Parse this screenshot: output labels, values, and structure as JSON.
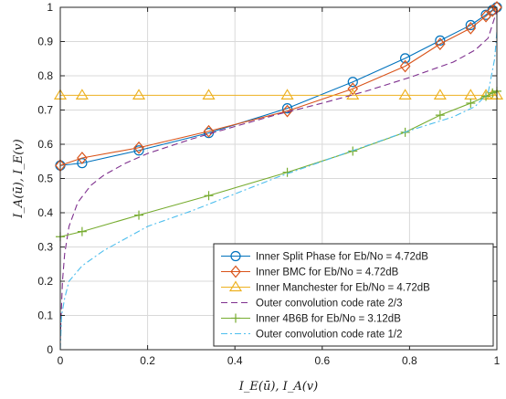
{
  "chart_data": {
    "type": "line",
    "title": "",
    "xlabel": "I_E(ū), I_A(v)",
    "ylabel": "I_A(ū), I_E(v)",
    "xlim": [
      0,
      1
    ],
    "ylim": [
      0,
      1
    ],
    "grid": true,
    "legend_position": "bottom-right",
    "x_ticks": [
      "0",
      "0.2",
      "0.4",
      "0.6",
      "0.8",
      "1"
    ],
    "y_ticks": [
      "0",
      "0.1",
      "0.2",
      "0.3",
      "0.4",
      "0.5",
      "0.6",
      "0.7",
      "0.8",
      "0.9",
      "1"
    ],
    "series": [
      {
        "name": "Inner Split Phase for Eb/No = 4.72dB",
        "color": "#0072BD",
        "marker": "circle",
        "line_style": "solid",
        "x": [
          0,
          0.05,
          0.18,
          0.34,
          0.52,
          0.67,
          0.79,
          0.87,
          0.94,
          0.975,
          0.99,
          1.0
        ],
        "y": [
          0.538,
          0.545,
          0.582,
          0.633,
          0.705,
          0.782,
          0.851,
          0.903,
          0.948,
          0.978,
          0.992,
          1.0
        ]
      },
      {
        "name": "Inner BMC for Eb/No = 4.72dB",
        "color": "#D95319",
        "marker": "diamond",
        "line_style": "solid",
        "x": [
          0,
          0.05,
          0.18,
          0.34,
          0.52,
          0.67,
          0.79,
          0.87,
          0.94,
          0.975,
          0.99,
          1.0
        ],
        "y": [
          0.538,
          0.56,
          0.59,
          0.638,
          0.697,
          0.762,
          0.828,
          0.893,
          0.939,
          0.974,
          0.99,
          1.0
        ]
      },
      {
        "name": "Inner Manchester for Eb/No = 4.72dB",
        "color": "#EDB120",
        "marker": "triangle",
        "line_style": "solid",
        "x": [
          0,
          0.05,
          0.18,
          0.34,
          0.52,
          0.67,
          0.79,
          0.87,
          0.94,
          0.975,
          0.99,
          1.0
        ],
        "y": [
          0.743,
          0.743,
          0.743,
          0.743,
          0.743,
          0.743,
          0.743,
          0.743,
          0.743,
          0.743,
          0.743,
          0.743
        ]
      },
      {
        "name": "Outer convolution code rate 2/3",
        "color": "#7E2F8E",
        "marker": "none",
        "line_style": "dashed",
        "x": [
          0,
          0.005,
          0.01,
          0.02,
          0.04,
          0.07,
          0.1,
          0.15,
          0.2,
          0.3,
          0.4,
          0.5,
          0.6,
          0.7,
          0.8,
          0.9,
          0.95,
          0.98,
          1.0
        ],
        "y": [
          0.03,
          0.2,
          0.28,
          0.36,
          0.43,
          0.48,
          0.51,
          0.545,
          0.573,
          0.615,
          0.652,
          0.688,
          0.72,
          0.755,
          0.795,
          0.84,
          0.875,
          0.91,
          0.99
        ]
      },
      {
        "name": "Inner 4B6B for Eb/No = 3.12dB",
        "color": "#77AC30",
        "marker": "plus",
        "line_style": "solid",
        "x": [
          0,
          0.05,
          0.18,
          0.34,
          0.52,
          0.67,
          0.79,
          0.87,
          0.94,
          0.975,
          0.99,
          1.0
        ],
        "y": [
          0.33,
          0.345,
          0.393,
          0.45,
          0.518,
          0.58,
          0.635,
          0.685,
          0.72,
          0.74,
          0.75,
          0.755
        ]
      },
      {
        "name": "Outer convolution code rate 1/2",
        "color": "#4DBEEE",
        "marker": "none",
        "line_style": "dashdot",
        "x": [
          0,
          0.003,
          0.01,
          0.02,
          0.05,
          0.1,
          0.2,
          0.3,
          0.4,
          0.5,
          0.6,
          0.7,
          0.8,
          0.9,
          0.95,
          0.98,
          0.995,
          1.0
        ],
        "y": [
          0.0,
          0.1,
          0.15,
          0.2,
          0.245,
          0.29,
          0.36,
          0.405,
          0.455,
          0.505,
          0.55,
          0.595,
          0.64,
          0.68,
          0.71,
          0.75,
          0.85,
          0.93
        ]
      }
    ]
  }
}
